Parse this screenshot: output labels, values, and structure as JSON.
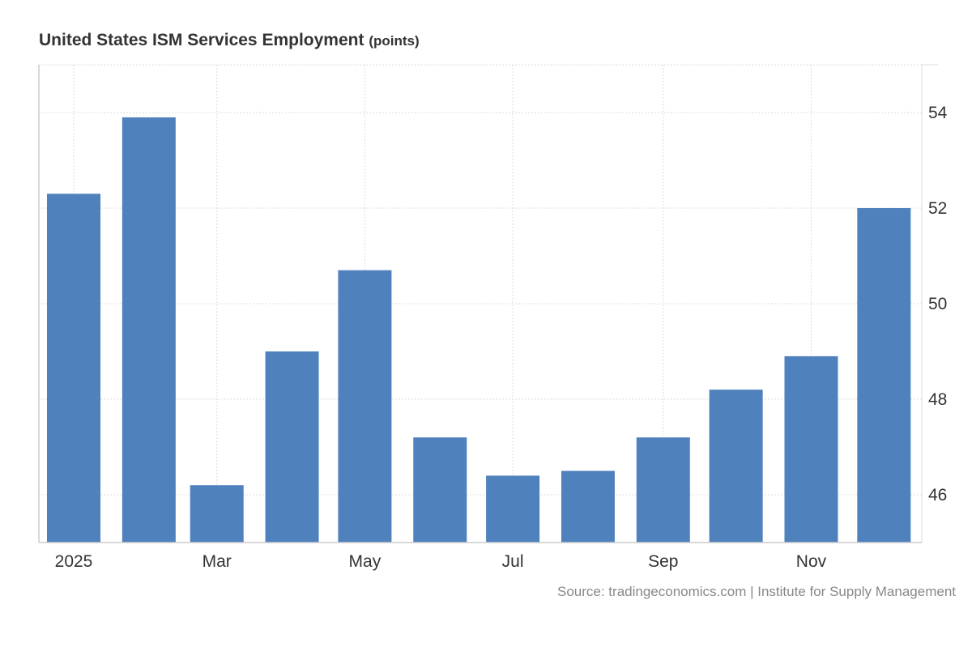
{
  "chart_data": {
    "type": "bar",
    "title": "United States ISM Services Employment",
    "unit": "(points)",
    "categories": [
      "2025-01",
      "2025-02",
      "2025-03",
      "2025-04",
      "2025-05",
      "2025-06",
      "2025-07",
      "2025-08",
      "2025-09",
      "2025-10",
      "2025-11",
      "2025-12"
    ],
    "values": [
      52.3,
      53.9,
      46.2,
      49.0,
      50.7,
      47.2,
      46.4,
      46.5,
      47.2,
      48.2,
      48.9,
      52.0
    ],
    "x_ticks": [
      {
        "date": "2025-01-01",
        "label": "2025"
      },
      {
        "date": "2025-03-01",
        "label": "Mar"
      },
      {
        "date": "2025-05-01",
        "label": "May"
      },
      {
        "date": "2025-07-01",
        "label": "Jul"
      },
      {
        "date": "2025-09-01",
        "label": "Sep"
      },
      {
        "date": "2025-11-01",
        "label": "Nov"
      }
    ],
    "y_ticks": [
      46,
      48,
      50,
      52,
      54
    ],
    "ylim": [
      45,
      55
    ],
    "y_axis_side": "right",
    "grid": true,
    "bar_color": "#4f81bd",
    "source": "Source: tradingeconomics.com | Institute for Supply Management"
  }
}
